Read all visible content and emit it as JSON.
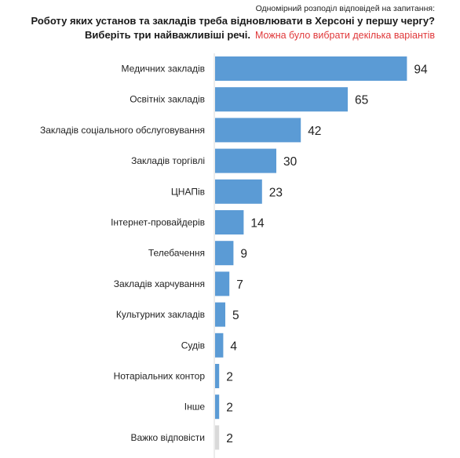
{
  "header": {
    "subtitle": "Одномірний розподіл відповідей на запитання:",
    "title": "Роботу яких установ та закладів треба відновлювати в Херсоні у першу чергу?",
    "instruction": "Виберіть три найважливіші речі.",
    "note": "Можна було вибрати декілька варіантів"
  },
  "colors": {
    "bar": "#5b9bd5",
    "bar_muted": "#d9d9d9",
    "axis": "#d9d9d9",
    "note": "#e0383a"
  },
  "chart_data": {
    "type": "bar",
    "orientation": "horizontal",
    "categories": [
      "Медичних закладів",
      "Освітніх закладів",
      "Закладів соціального обслуговування",
      "Закладів торгівлі",
      "ЦНАПів",
      "Інтернет-провайдерів",
      "Телебачення",
      "Закладів харчування",
      "Культурних закладів",
      "Судів",
      "Нотаріальних контор",
      "Інше",
      "Важко відповісти"
    ],
    "values": [
      94,
      65,
      42,
      30,
      23,
      14,
      9,
      7,
      5,
      4,
      2,
      2,
      2
    ],
    "value_labels": [
      "94",
      "65",
      "42",
      "30",
      "23",
      "14",
      "9",
      "7",
      "5",
      "4",
      "2",
      "2",
      "2"
    ],
    "muted_categories": [
      "Важко відповісти"
    ],
    "xlim": [
      0,
      100
    ],
    "grid": false,
    "legend": "none"
  }
}
